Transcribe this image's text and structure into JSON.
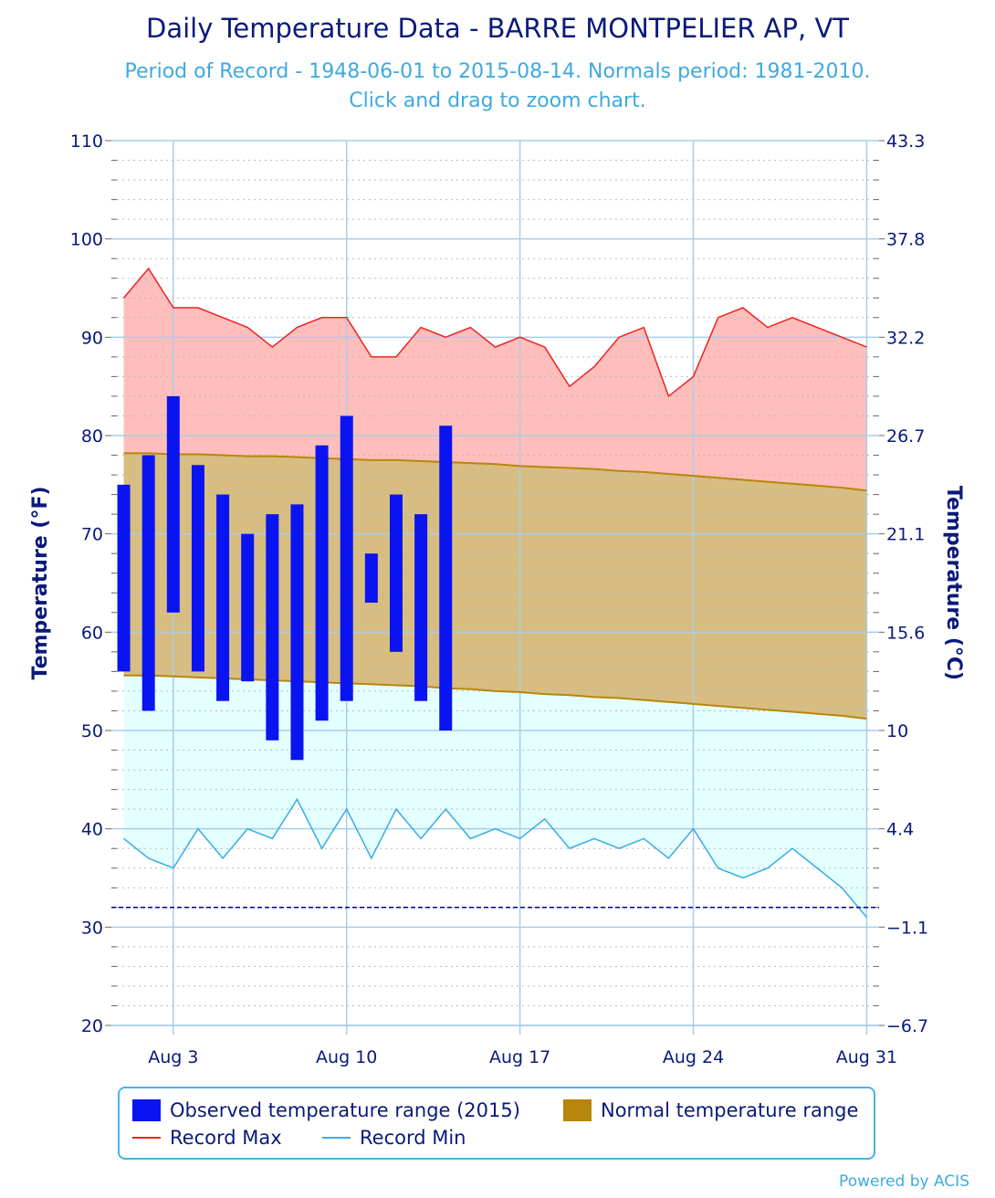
{
  "title": "Daily Temperature Data - BARRE MONTPELIER AP, VT",
  "subtitle_line1": "Period of Record - 1948-06-01 to 2015-08-14. Normals period: 1981-2010.",
  "subtitle_line2": "Click and drag to zoom chart.",
  "credit": "Powered by ACIS",
  "colors": {
    "observed": "#0a14f0",
    "normal_fill": "#d7bd82",
    "normal_line": "#b8860b",
    "record_max_line": "#ee2222",
    "record_max_fill": "#ffbebb",
    "record_min_line": "#38abe6",
    "record_min_fill": "#e4ffff",
    "freeze_line": "#00009c",
    "axis_text": "#0a1a7a",
    "grid": "#a8cde6"
  },
  "legend": {
    "observed": "Observed temperature range (2015)",
    "normal": "Normal temperature range",
    "record_max": "Record Max",
    "record_min": "Record Min"
  },
  "chart_data": {
    "type": "bar",
    "ylabel_left": "Temperature (°F)",
    "ylabel_right": "Temperature (°C)",
    "ylim": [
      20,
      110
    ],
    "yticks_left": [
      "20",
      "30",
      "40",
      "50",
      "60",
      "70",
      "80",
      "90",
      "100",
      "110"
    ],
    "yticks_right": [
      "−6.7",
      "−1.1",
      "4.4",
      "10",
      "15.6",
      "21.1",
      "26.7",
      "32.2",
      "37.8",
      "43.3"
    ],
    "xticks": [
      {
        "day": 3,
        "label": "Aug 3"
      },
      {
        "day": 10,
        "label": "Aug 10"
      },
      {
        "day": 17,
        "label": "Aug 17"
      },
      {
        "day": 24,
        "label": "Aug 24"
      },
      {
        "day": 31,
        "label": "Aug 31"
      }
    ],
    "x_range": [
      0.5,
      31.5
    ],
    "freezing_f": 32,
    "days": [
      1,
      2,
      3,
      4,
      5,
      6,
      7,
      8,
      9,
      10,
      11,
      12,
      13,
      14,
      15,
      16,
      17,
      18,
      19,
      20,
      21,
      22,
      23,
      24,
      25,
      26,
      27,
      28,
      29,
      30,
      31
    ],
    "observed_2015": {
      "days": [
        1,
        2,
        3,
        4,
        5,
        6,
        7,
        8,
        9,
        10,
        11,
        12,
        13,
        14
      ],
      "max": [
        75,
        78,
        84,
        77,
        74,
        70,
        72,
        73,
        79,
        82,
        68,
        74,
        72,
        81
      ],
      "min": [
        56,
        52,
        62,
        56,
        53,
        55,
        49,
        47,
        51,
        53,
        63,
        58,
        53,
        50
      ]
    },
    "normal_max": [
      78.2,
      78.2,
      78.1,
      78.1,
      78.0,
      77.9,
      77.9,
      77.8,
      77.7,
      77.6,
      77.5,
      77.5,
      77.4,
      77.3,
      77.2,
      77.1,
      76.9,
      76.8,
      76.7,
      76.6,
      76.4,
      76.3,
      76.1,
      75.9,
      75.7,
      75.5,
      75.3,
      75.1,
      74.9,
      74.7,
      74.4
    ],
    "normal_min": [
      55.6,
      55.6,
      55.5,
      55.4,
      55.3,
      55.2,
      55.1,
      55.0,
      54.9,
      54.8,
      54.7,
      54.6,
      54.5,
      54.3,
      54.2,
      54.0,
      53.9,
      53.7,
      53.6,
      53.4,
      53.3,
      53.1,
      52.9,
      52.7,
      52.5,
      52.3,
      52.1,
      51.9,
      51.7,
      51.5,
      51.2
    ],
    "record_max": [
      94,
      97,
      93,
      93,
      92,
      91,
      89,
      91,
      92,
      92,
      88,
      88,
      91,
      90,
      91,
      89,
      90,
      89,
      85,
      87,
      90,
      91,
      84,
      86,
      92,
      93,
      91,
      92,
      91,
      90,
      89
    ],
    "record_min": [
      39,
      37,
      36,
      40,
      37,
      40,
      39,
      43,
      38,
      42,
      37,
      42,
      39,
      42,
      39,
      40,
      39,
      41,
      38,
      39,
      38,
      39,
      37,
      40,
      36,
      35,
      36,
      38,
      36,
      34,
      31
    ]
  }
}
